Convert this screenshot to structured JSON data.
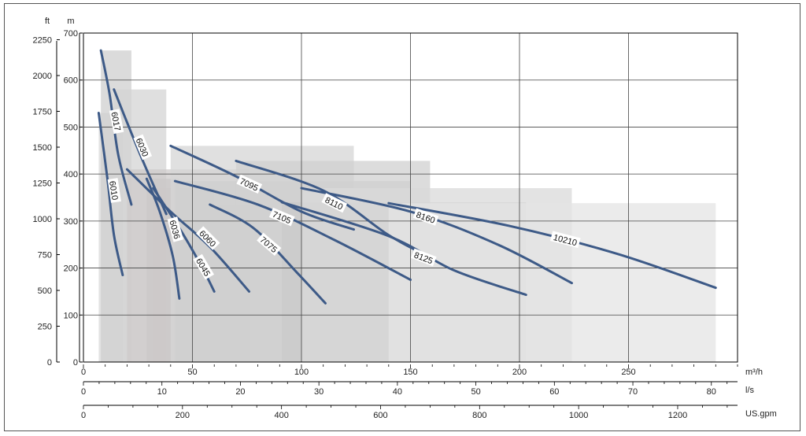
{
  "chart_data": {
    "type": "line",
    "title": "",
    "y_units": {
      "left_outer": "ft",
      "left_inner": "m"
    },
    "x_units": [
      "m³/h",
      "l/s",
      "US.gpm"
    ],
    "ylim": [
      0,
      700
    ],
    "xlim": [
      0,
      300
    ],
    "grid": true,
    "y_ticks_m": [
      0,
      100,
      200,
      300,
      400,
      500,
      600,
      700
    ],
    "y_ticks_ft": [
      0,
      250,
      500,
      750,
      1000,
      1250,
      1500,
      1750,
      2000,
      2250
    ],
    "x_ticks_m3h": [
      0,
      50,
      100,
      150,
      200,
      250
    ],
    "x_ticks_ls": [
      0,
      10,
      20,
      30,
      40,
      50,
      60,
      70,
      80
    ],
    "x_ticks_gpm": [
      0,
      200,
      400,
      600,
      800,
      1000,
      1200
    ],
    "series": [
      {
        "name": "6010",
        "label_pos": [
          14,
          365
        ],
        "points": [
          [
            7,
            530
          ],
          [
            11,
            390
          ],
          [
            14,
            270
          ],
          [
            18,
            185
          ]
        ]
      },
      {
        "name": "6017",
        "label_pos": [
          15,
          512
        ],
        "points": [
          [
            8,
            663
          ],
          [
            12,
            570
          ],
          [
            16,
            440
          ],
          [
            22,
            335
          ]
        ]
      },
      {
        "name": "6030",
        "label_pos": [
          27,
          457
        ],
        "points": [
          [
            14,
            580
          ],
          [
            20,
            510
          ],
          [
            28,
            420
          ],
          [
            38,
            315
          ]
        ]
      },
      {
        "name": "6036",
        "label_pos": [
          42,
          282
        ],
        "points": [
          [
            29,
            390
          ],
          [
            35,
            320
          ],
          [
            41,
            225
          ],
          [
            44,
            135
          ]
        ]
      },
      {
        "name": "6045",
        "label_pos": [
          55,
          202
        ],
        "points": [
          [
            32,
            370
          ],
          [
            44,
            285
          ],
          [
            54,
            205
          ],
          [
            60,
            150
          ]
        ]
      },
      {
        "name": "6060",
        "label_pos": [
          57,
          263
        ],
        "points": [
          [
            20,
            410
          ],
          [
            40,
            320
          ],
          [
            58,
            245
          ],
          [
            76,
            150
          ]
        ]
      },
      {
        "name": "7075",
        "label_pos": [
          85,
          250
        ],
        "points": [
          [
            58,
            335
          ],
          [
            78,
            285
          ],
          [
            98,
            190
          ],
          [
            111,
            125
          ]
        ]
      },
      {
        "name": "7095",
        "label_pos": [
          76,
          378
        ],
        "points": [
          [
            40,
            460
          ],
          [
            70,
            395
          ],
          [
            100,
            320
          ],
          [
            124,
            282
          ]
        ]
      },
      {
        "name": "7105",
        "label_pos": [
          91,
          308
        ],
        "points": [
          [
            42,
            385
          ],
          [
            80,
            335
          ],
          [
            115,
            260
          ],
          [
            150,
            175
          ]
        ]
      },
      {
        "name": "8110",
        "label_pos": [
          115,
          338
        ],
        "points": [
          [
            70,
            428
          ],
          [
            110,
            365
          ],
          [
            140,
            270
          ],
          [
            159,
            223
          ]
        ]
      },
      {
        "name": "8125",
        "label_pos": [
          156,
          222
        ],
        "points": [
          [
            91,
            340
          ],
          [
            140,
            268
          ],
          [
            170,
            195
          ],
          [
            203,
            143
          ]
        ]
      },
      {
        "name": "8160",
        "label_pos": [
          157,
          308
        ],
        "points": [
          [
            100,
            370
          ],
          [
            150,
            320
          ],
          [
            190,
            250
          ],
          [
            224,
            168
          ]
        ]
      },
      {
        "name": "10210",
        "label_pos": [
          221,
          260
        ],
        "points": [
          [
            140,
            338
          ],
          [
            195,
            290
          ],
          [
            245,
            230
          ],
          [
            290,
            158
          ]
        ]
      }
    ],
    "curve_color": "#3d5a87"
  }
}
